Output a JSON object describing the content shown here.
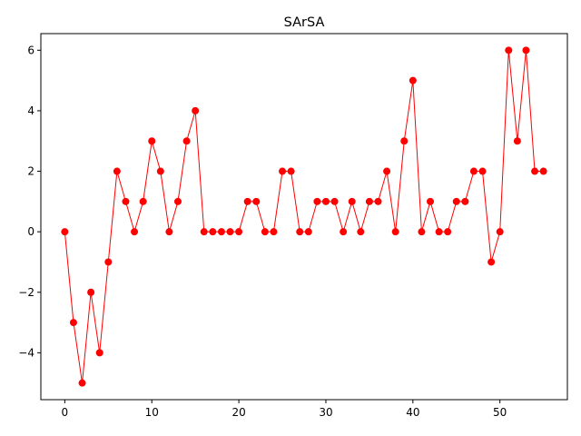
{
  "chart_data": {
    "type": "line",
    "title": "SArSA",
    "xlabel": "",
    "ylabel": "",
    "xlim": [
      -2.75,
      57.75
    ],
    "ylim": [
      -5.55,
      6.55
    ],
    "x_ticks": [
      0,
      10,
      20,
      30,
      40,
      50
    ],
    "y_ticks": [
      -4,
      -2,
      0,
      2,
      4,
      6
    ],
    "x_tick_labels": [
      "0",
      "10",
      "20",
      "30",
      "40",
      "50"
    ],
    "y_tick_labels": [
      "−4",
      "−2",
      "0",
      "2",
      "4",
      "6"
    ],
    "grid": false,
    "color": "#ff0000",
    "series": [
      {
        "x": [
          0,
          1,
          2,
          3,
          4,
          5,
          6,
          7,
          8,
          9,
          10,
          11,
          12,
          13,
          14,
          15,
          16,
          17,
          18,
          19,
          20,
          21,
          22,
          23,
          24,
          25,
          26,
          27,
          28,
          29,
          30,
          31,
          32,
          33,
          34,
          35,
          36,
          37,
          38,
          39,
          40,
          41,
          42,
          43,
          44,
          45,
          46,
          47,
          48,
          49,
          50,
          51,
          52,
          53,
          54,
          55
        ],
        "values": [
          0,
          -3,
          -5,
          -2,
          -4,
          -1,
          2,
          1,
          0,
          1,
          3,
          2,
          0,
          1,
          3,
          4,
          0,
          0,
          0,
          0,
          0,
          1,
          1,
          0,
          0,
          2,
          2,
          0,
          0,
          1,
          1,
          1,
          0,
          1,
          0,
          1,
          1,
          2,
          0,
          3,
          5,
          0,
          1,
          0,
          0,
          1,
          1,
          2,
          2,
          -1,
          0,
          6,
          3,
          6,
          2,
          2
        ]
      }
    ]
  }
}
